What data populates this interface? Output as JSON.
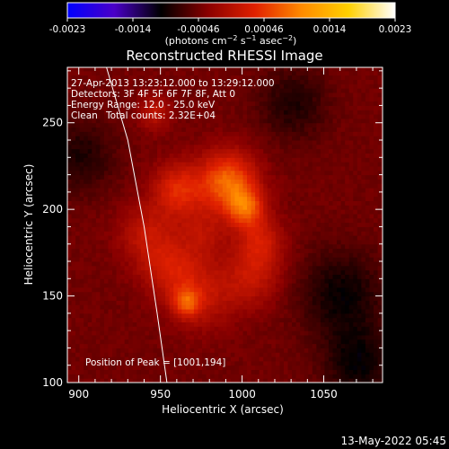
{
  "chart_data": {
    "type": "heatmap",
    "title": "Reconstructed RHESSI Image",
    "xlabel": "Heliocentric X (arcsec)",
    "ylabel": "Heliocentric Y (arcsec)",
    "xlim": [
      893,
      1086
    ],
    "ylim": [
      100,
      282
    ],
    "x_ticks": [
      900,
      950,
      1000,
      1050
    ],
    "y_ticks": [
      100,
      150,
      200,
      250
    ],
    "colorbar": {
      "ticks": [
        "-0.0023",
        "-0.0014",
        "-0.00046",
        "0.00046",
        "0.0014",
        "0.0023"
      ],
      "range": [
        -0.0023,
        0.0023
      ],
      "units": "(photons cm-2 s-1 asec-2)",
      "colors": [
        "#0000ff",
        "#4a00c8",
        "#000000",
        "#8a0000",
        "#e02000",
        "#ff8a00",
        "#ffd000",
        "#ffffff"
      ]
    },
    "annotations": {
      "time_range": "27-Apr-2013 13:23:12.000 to 13:29:12.000",
      "detectors": "Detectors: 3F 4F 5F 6F 7F 8F, Att 0",
      "energy": "Energy Range: 12.0 - 25.0 keV",
      "clean_label": "Clean",
      "total_counts": "Total counts: 2.32E+04",
      "peak": "Position of Peak = [1001,194]"
    },
    "peak_position": [
      1001,
      194
    ],
    "limb_curve": [
      [
        917,
        282
      ],
      [
        930,
        240
      ],
      [
        940,
        190
      ],
      [
        948,
        140
      ],
      [
        954,
        100
      ]
    ],
    "sources": [
      {
        "x": 990,
        "y": 215,
        "amp": 0.0012,
        "sigma": 12
      },
      {
        "x": 1001,
        "y": 200,
        "amp": 0.001,
        "sigma": 8
      },
      {
        "x": 960,
        "y": 210,
        "amp": 0.0008,
        "sigma": 11
      },
      {
        "x": 940,
        "y": 185,
        "amp": 0.0005,
        "sigma": 12
      },
      {
        "x": 955,
        "y": 165,
        "amp": 0.0006,
        "sigma": 12
      },
      {
        "x": 975,
        "y": 150,
        "amp": 0.0005,
        "sigma": 14
      },
      {
        "x": 1005,
        "y": 160,
        "amp": 0.0005,
        "sigma": 12
      },
      {
        "x": 1010,
        "y": 180,
        "amp": 0.0006,
        "sigma": 10
      },
      {
        "x": 965,
        "y": 145,
        "amp": 0.0008,
        "sigma": 6
      },
      {
        "x": 945,
        "y": 255,
        "amp": 0.0005,
        "sigma": 7
      },
      {
        "x": 975,
        "y": 185,
        "amp": 0.0004,
        "sigma": 10
      },
      {
        "x": 1030,
        "y": 260,
        "amp": -0.0004,
        "sigma": 15
      },
      {
        "x": 1060,
        "y": 150,
        "amp": -0.0005,
        "sigma": 18
      },
      {
        "x": 1070,
        "y": 110,
        "amp": -0.0005,
        "sigma": 15
      },
      {
        "x": 900,
        "y": 230,
        "amp": -0.0004,
        "sigma": 15
      }
    ]
  },
  "footer": {
    "timestamp": "13-May-2022 05:45"
  }
}
